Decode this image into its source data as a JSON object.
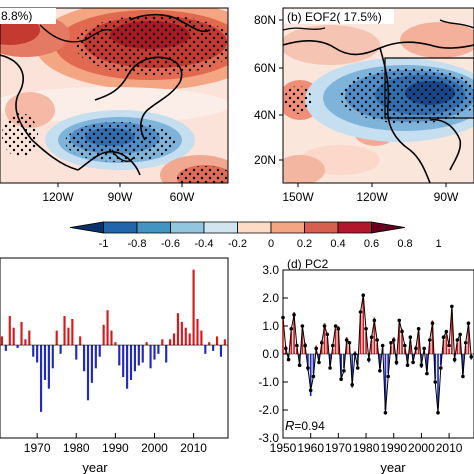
{
  "panels": {
    "a_title": "8.8%)",
    "b_title": "(b) EOF2( 17.5%)",
    "d_title": "(d) PC2",
    "c_xlabel": "year",
    "d_xlabel": "year",
    "r_label": "R",
    "r_value": "=0.94",
    "a_lon_ticks": [
      "120W",
      "90W",
      "60W"
    ],
    "b_lon_ticks": [
      "150W",
      "120W",
      "90W"
    ],
    "b_lat_ticks": [
      "80N",
      "60N",
      "40N",
      "20N"
    ]
  },
  "colorbar": {
    "labels": [
      "-1",
      "-0.8",
      "-0.6",
      "-0.4",
      "-0.2",
      "0",
      "0.2",
      "0.4",
      "0.6",
      "0.8",
      "1"
    ],
    "colors": [
      "#08306b",
      "#2166ac",
      "#4393c3",
      "#92c5de",
      "#d1e5f0",
      "#fddbc7",
      "#f4a582",
      "#d6604d",
      "#b2182b",
      "#67001f"
    ]
  },
  "colors": {
    "positive": "#d7191c",
    "negative": "#2029c0",
    "line": "#000000",
    "land_outline": "#000000"
  },
  "chart_data": [
    {
      "type": "bar",
      "panel": "c",
      "xlabel": "year",
      "x_ticks": [
        "1970",
        "1980",
        "1990",
        "2000",
        "2010"
      ],
      "x": [
        1961,
        1962,
        1963,
        1964,
        1965,
        1966,
        1967,
        1968,
        1969,
        1970,
        1971,
        1972,
        1973,
        1974,
        1975,
        1976,
        1977,
        1978,
        1979,
        1980,
        1981,
        1982,
        1983,
        1984,
        1985,
        1986,
        1987,
        1988,
        1989,
        1990,
        1991,
        1992,
        1993,
        1994,
        1995,
        1996,
        1997,
        1998,
        1999,
        2000,
        2001,
        2002,
        2003,
        2004,
        2005,
        2006,
        2007,
        2008,
        2009,
        2010,
        2011,
        2012,
        2013,
        2014,
        2015,
        2016,
        2017,
        2018
      ],
      "values": [
        0.3,
        -0.2,
        1.0,
        0.6,
        -0.1,
        0.8,
        0.2,
        0.5,
        -0.4,
        -0.6,
        -2.3,
        -1.2,
        -1.5,
        -0.8,
        0.5,
        -0.3,
        1.0,
        0.6,
        0.9,
        -0.5,
        0.3,
        -0.9,
        -1.9,
        -1.3,
        -0.8,
        -0.4,
        0.7,
        1.2,
        0.5,
        0.1,
        -0.7,
        -1.1,
        -1.5,
        -1.2,
        -0.9,
        -0.7,
        -0.6,
        0.1,
        -0.8,
        -0.5,
        -0.3,
        0.2,
        -0.6,
        0.2,
        0.4,
        1.1,
        0.8,
        0.6,
        0.4,
        2.6,
        0.9,
        0.5,
        -0.3,
        0.1,
        -0.2,
        0.3,
        -0.4,
        0.2
      ],
      "ylim": [
        -3.2,
        3.0
      ]
    },
    {
      "type": "bar",
      "panel": "d",
      "title": "(d) PC2",
      "xlabel": "year",
      "x_ticks": [
        "1950",
        "1960",
        "1970",
        "1980",
        "1990",
        "2000",
        "2010"
      ],
      "y_ticks": [
        "3.0",
        "2.0",
        "1.0",
        "0.0",
        "-1.0",
        "-2.0",
        "-3.0"
      ],
      "ylim": [
        -3.0,
        3.0
      ],
      "x": [
        1950,
        1951,
        1952,
        1953,
        1954,
        1955,
        1956,
        1957,
        1958,
        1959,
        1960,
        1961,
        1962,
        1963,
        1964,
        1965,
        1966,
        1967,
        1968,
        1969,
        1970,
        1971,
        1972,
        1973,
        1974,
        1975,
        1976,
        1977,
        1978,
        1979,
        1980,
        1981,
        1982,
        1983,
        1984,
        1985,
        1986,
        1987,
        1988,
        1989,
        1990,
        1991,
        1992,
        1993,
        1994,
        1995,
        1996,
        1997,
        1998,
        1999,
        2000,
        2001,
        2002,
        2003,
        2004,
        2005,
        2006,
        2007,
        2008,
        2009,
        2010,
        2011,
        2012,
        2013,
        2014,
        2015,
        2016,
        2017,
        2018
      ],
      "series": [
        {
          "name": "",
          "kind": "bar",
          "values": [
            1.2,
            0.3,
            -0.1,
            0.8,
            1.5,
            0.2,
            -0.3,
            0.9,
            0.4,
            -0.6,
            -1.5,
            -0.7,
            0.3,
            -0.2,
            0.5,
            1.1,
            0.6,
            -0.4,
            0.2,
            0.9,
            1.0,
            -0.8,
            -0.5,
            0.6,
            0.3,
            -1.2,
            0.1,
            -0.4,
            1.4,
            2.0,
            0.8,
            -0.3,
            0.5,
            1.3,
            0.4,
            -0.5,
            0.2,
            -2.0,
            -0.7,
            0.3,
            0.6,
            -0.4,
            1.1,
            0.9,
            0.2,
            -0.3,
            0.5,
            -0.2,
            0.3,
            0.8,
            -0.5,
            0.1,
            -0.6,
            0.4,
            1.2,
            -0.9,
            -1.9,
            -0.4,
            0.5,
            0.7,
            0.2,
            1.6,
            -0.3,
            0.4,
            0.6,
            -0.7,
            0.3,
            1.0,
            -0.2
          ]
        },
        {
          "name": "",
          "kind": "line",
          "values": [
            1.3,
            0.2,
            -0.2,
            0.9,
            1.4,
            0.3,
            -0.4,
            1.0,
            0.3,
            -0.5,
            -1.3,
            -0.8,
            0.2,
            -0.3,
            0.4,
            1.0,
            0.7,
            -0.5,
            0.3,
            1.0,
            0.9,
            -0.9,
            -0.6,
            0.5,
            0.4,
            -1.1,
            0.0,
            -0.5,
            1.5,
            2.1,
            0.9,
            -0.2,
            0.6,
            1.2,
            0.5,
            -0.6,
            0.3,
            -2.1,
            -0.8,
            0.4,
            0.5,
            -0.3,
            1.2,
            0.8,
            0.3,
            -0.4,
            0.6,
            -0.3,
            0.2,
            0.9,
            -0.4,
            0.2,
            -0.7,
            0.5,
            1.1,
            -1.0,
            -2.1,
            -0.5,
            0.6,
            0.8,
            0.3,
            1.7,
            -0.2,
            0.5,
            0.7,
            -0.8,
            0.4,
            1.1,
            -0.1
          ]
        }
      ]
    }
  ]
}
